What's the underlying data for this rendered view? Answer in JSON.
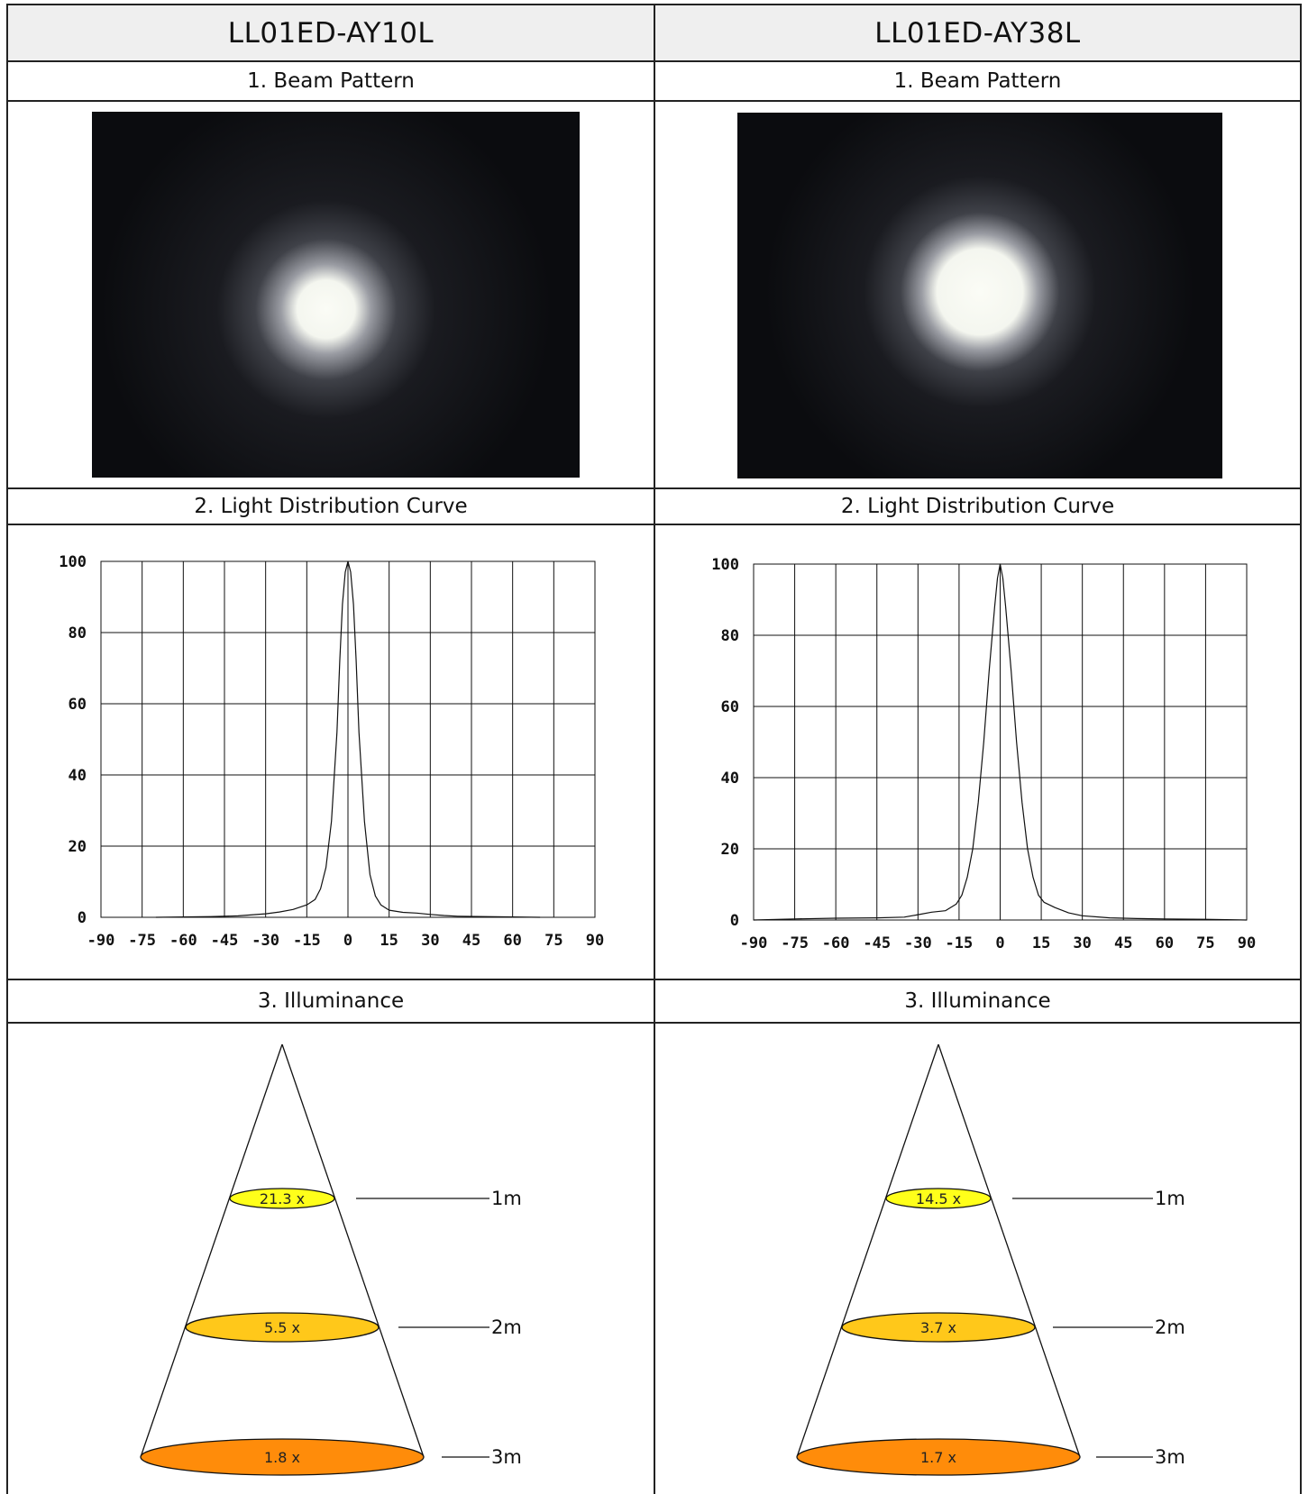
{
  "columns": [
    {
      "model": "LL01ED-AY10L",
      "beam_title": "1. Beam Pattern",
      "curve_title": "2. Light Distribution Curve",
      "illuminance_title": "3. Illuminance",
      "beam_spot": {
        "core": 0.09,
        "spread": 0.22
      },
      "chart_data": {
        "type": "line",
        "title": "",
        "xlabel": "",
        "ylabel": "",
        "xlim": [
          -90,
          90
        ],
        "ylim": [
          0,
          100
        ],
        "xticks": [
          "-90",
          "-75",
          "-60",
          "-45",
          "-30",
          "-15",
          "0",
          "15",
          "30",
          "45",
          "60",
          "75",
          "90"
        ],
        "yticks": [
          "0",
          "20",
          "40",
          "60",
          "80",
          "100"
        ],
        "grid": true,
        "series": [
          {
            "x": [
              -70,
              -50,
              -40,
              -30,
              -25,
              -20,
              -15,
              -12,
              -10,
              -8,
              -6,
              -4,
              -3,
              -2,
              -1,
              0,
              1,
              2,
              3,
              4,
              6,
              8,
              10,
              12,
              15,
              20,
              25,
              30,
              35,
              40,
              50,
              60,
              70
            ],
            "values": [
              0,
              0.2,
              0.4,
              1,
              1.5,
              2.2,
              3.5,
              5,
              8,
              14,
              27,
              52,
              72,
              88,
              97,
              100,
              97,
              88,
              72,
              52,
              27,
              12,
              6,
              3.5,
              2,
              1.4,
              1.2,
              0.8,
              0.5,
              0.3,
              0.2,
              0.1,
              0
            ]
          }
        ]
      },
      "illuminance": [
        {
          "distance": "1m",
          "value": "21.3 x",
          "color": "#ffff1a"
        },
        {
          "distance": "2m",
          "value": "5.5 x",
          "color": "#ffc81a"
        },
        {
          "distance": "3m",
          "value": "1.8 x",
          "color": "#ff8c0a"
        }
      ]
    },
    {
      "model": "LL01ED-AY38L",
      "beam_title": "1. Beam Pattern",
      "curve_title": "2. Light Distribution Curve",
      "illuminance_title": "3. Illuminance",
      "beam_spot": {
        "core": 0.14,
        "spread": 0.26
      },
      "chart_data": {
        "type": "line",
        "title": "",
        "xlabel": "",
        "ylabel": "",
        "xlim": [
          -90,
          90
        ],
        "ylim": [
          0,
          100
        ],
        "xticks": [
          "-90",
          "-75",
          "-60",
          "-45",
          "-30",
          "-15",
          "0",
          "15",
          "30",
          "45",
          "60",
          "75",
          "90"
        ],
        "yticks": [
          "0",
          "20",
          "40",
          "60",
          "80",
          "100"
        ],
        "grid": true,
        "series": [
          {
            "x": [
              -90,
              -75,
              -60,
              -45,
              -35,
              -30,
              -25,
              -20,
              -16,
              -14,
              -12,
              -10,
              -8,
              -6,
              -4,
              -2,
              -1,
              0,
              1,
              2,
              4,
              6,
              8,
              10,
              12,
              14,
              16,
              20,
              25,
              30,
              40,
              50,
              60,
              75,
              90
            ],
            "values": [
              0,
              0.3,
              0.5,
              0.6,
              0.8,
              1.5,
              2.2,
              2.6,
              4.5,
              7,
              12,
              20,
              33,
              50,
              70,
              88,
              96,
              100,
              96,
              88,
              70,
              50,
              33,
              20,
              12,
              7,
              5,
              3.5,
              2,
              1.2,
              0.6,
              0.4,
              0.3,
              0.2,
              0
            ]
          }
        ]
      },
      "illuminance": [
        {
          "distance": "1m",
          "value": "14.5 x",
          "color": "#ffff1a"
        },
        {
          "distance": "2m",
          "value": "3.7 x",
          "color": "#ffc81a"
        },
        {
          "distance": "3m",
          "value": "1.7 x",
          "color": "#ff8c0a"
        }
      ]
    }
  ]
}
